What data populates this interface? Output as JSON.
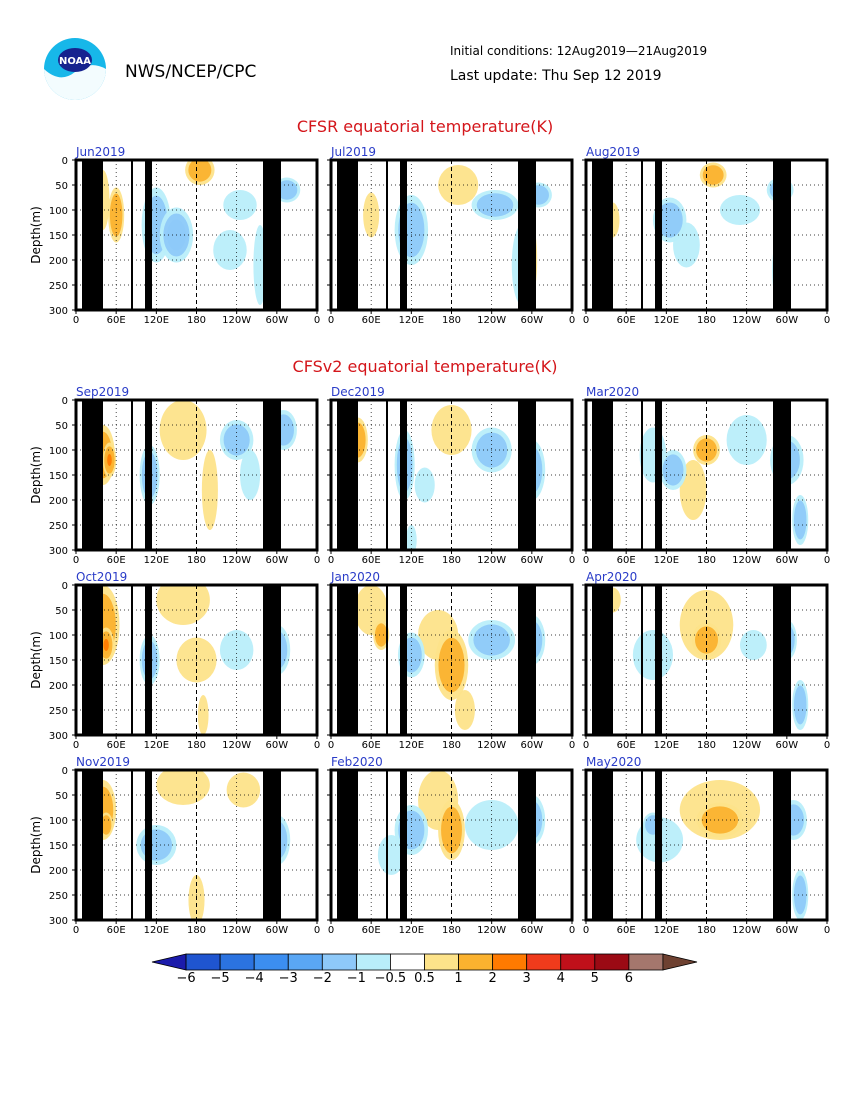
{
  "header": {
    "org": "NWS/NCEP/CPC",
    "logo_text": "NOAA",
    "initial_conditions": "Initial conditions: 12Aug2019—21Aug2019",
    "last_update": "Last update: Thu Sep 12 2019"
  },
  "sections": [
    {
      "title": "CFSR equatorial temperature(K)"
    },
    {
      "title": "CFSv2 equatorial temperature(K)"
    }
  ],
  "axes": {
    "ylabel": "Depth(m)",
    "xticks": [
      "0",
      "60E",
      "120E",
      "180",
      "120W",
      "60W",
      "0"
    ],
    "yticks": [
      "0",
      "50",
      "100",
      "150",
      "200",
      "250",
      "300"
    ]
  },
  "colors": {
    "land": "#000000",
    "month_label": "#2a3cc8",
    "section_title": "#d4161b"
  },
  "chart_data": {
    "type": "heatmap",
    "variable": "equatorial temperature anomaly (K)",
    "x": [
      "0",
      "60E",
      "120E",
      "180",
      "120W",
      "60W",
      "0"
    ],
    "y": [
      0,
      50,
      100,
      150,
      200,
      250,
      300
    ],
    "ylim": [
      300,
      0
    ],
    "grid": true,
    "panels": [
      {
        "label": "Jun2019",
        "section": 0,
        "row": 0,
        "col": 0,
        "features": [
          {
            "lon": 120,
            "depth": 130,
            "rx": 22,
            "ry": 75,
            "v": -1.5
          },
          {
            "lon": 150,
            "depth": 150,
            "rx": 25,
            "ry": 55,
            "v": -2
          },
          {
            "lon": 60,
            "depth": 110,
            "rx": 12,
            "ry": 55,
            "v": 1.5
          },
          {
            "lon": 40,
            "depth": 80,
            "rx": 10,
            "ry": 60,
            "v": 0.8
          },
          {
            "lon": 185,
            "depth": 20,
            "rx": 22,
            "ry": 30,
            "v": 1.5
          },
          {
            "lon": 245,
            "depth": 90,
            "rx": 25,
            "ry": 30,
            "v": -1
          },
          {
            "lon": 315,
            "depth": 60,
            "rx": 20,
            "ry": 25,
            "v": -1.5
          },
          {
            "lon": 275,
            "depth": 210,
            "rx": 10,
            "ry": 80,
            "v": -0.6
          },
          {
            "lon": 230,
            "depth": 180,
            "rx": 25,
            "ry": 40,
            "v": -0.6
          }
        ]
      },
      {
        "label": "Jul2019",
        "section": 0,
        "row": 0,
        "col": 1,
        "features": [
          {
            "lon": 120,
            "depth": 140,
            "rx": 25,
            "ry": 70,
            "v": -1.5
          },
          {
            "lon": 60,
            "depth": 110,
            "rx": 12,
            "ry": 45,
            "v": 1
          },
          {
            "lon": 190,
            "depth": 50,
            "rx": 30,
            "ry": 40,
            "v": 0.6
          },
          {
            "lon": 245,
            "depth": 90,
            "rx": 35,
            "ry": 30,
            "v": -1.5
          },
          {
            "lon": 310,
            "depth": 70,
            "rx": 20,
            "ry": 25,
            "v": -1.5
          },
          {
            "lon": 285,
            "depth": 210,
            "rx": 15,
            "ry": 80,
            "v": -0.6
          },
          {
            "lon": 300,
            "depth": 200,
            "rx": 8,
            "ry": 70,
            "v": 0.6
          }
        ]
      },
      {
        "label": "Aug2019",
        "section": 0,
        "row": 0,
        "col": 2,
        "features": [
          {
            "lon": 125,
            "depth": 120,
            "rx": 25,
            "ry": 45,
            "v": -1.5
          },
          {
            "lon": 40,
            "depth": 120,
            "rx": 10,
            "ry": 35,
            "v": 1
          },
          {
            "lon": 190,
            "depth": 30,
            "rx": 20,
            "ry": 25,
            "v": 1.5
          },
          {
            "lon": 230,
            "depth": 100,
            "rx": 30,
            "ry": 30,
            "v": -1
          },
          {
            "lon": 290,
            "depth": 60,
            "rx": 20,
            "ry": 25,
            "v": -1.5
          },
          {
            "lon": 290,
            "depth": 220,
            "rx": 12,
            "ry": 70,
            "v": -0.6
          },
          {
            "lon": 150,
            "depth": 170,
            "rx": 20,
            "ry": 45,
            "v": -0.6
          }
        ]
      },
      {
        "label": "Sep2019",
        "section": 1,
        "row": 0,
        "col": 0,
        "features": [
          {
            "lon": 40,
            "depth": 110,
            "rx": 18,
            "ry": 60,
            "v": 2
          },
          {
            "lon": 50,
            "depth": 120,
            "rx": 10,
            "ry": 35,
            "v": 2.5
          },
          {
            "lon": 110,
            "depth": 150,
            "rx": 15,
            "ry": 60,
            "v": -1.5
          },
          {
            "lon": 160,
            "depth": 60,
            "rx": 35,
            "ry": 60,
            "v": 0.6
          },
          {
            "lon": 200,
            "depth": 180,
            "rx": 12,
            "ry": 80,
            "v": 0.6
          },
          {
            "lon": 240,
            "depth": 80,
            "rx": 25,
            "ry": 40,
            "v": -1.5
          },
          {
            "lon": 310,
            "depth": 60,
            "rx": 20,
            "ry": 40,
            "v": -1.5
          },
          {
            "lon": 260,
            "depth": 150,
            "rx": 15,
            "ry": 50,
            "v": -0.6
          }
        ]
      },
      {
        "label": "Dec2019",
        "section": 1,
        "row": 0,
        "col": 1,
        "features": [
          {
            "lon": 40,
            "depth": 80,
            "rx": 15,
            "ry": 45,
            "v": 1.5
          },
          {
            "lon": 110,
            "depth": 130,
            "rx": 15,
            "ry": 70,
            "v": -1.5
          },
          {
            "lon": 140,
            "depth": 170,
            "rx": 15,
            "ry": 35,
            "v": -1
          },
          {
            "lon": 180,
            "depth": 60,
            "rx": 30,
            "ry": 50,
            "v": 0.6
          },
          {
            "lon": 240,
            "depth": 100,
            "rx": 30,
            "ry": 45,
            "v": -1.5
          },
          {
            "lon": 300,
            "depth": 140,
            "rx": 20,
            "ry": 60,
            "v": -1.5
          },
          {
            "lon": 120,
            "depth": 280,
            "rx": 8,
            "ry": 30,
            "v": -0.6
          }
        ]
      },
      {
        "label": "Mar2020",
        "section": 1,
        "row": 0,
        "col": 2,
        "features": [
          {
            "lon": 180,
            "depth": 100,
            "rx": 20,
            "ry": 30,
            "v": 1.5
          },
          {
            "lon": 160,
            "depth": 180,
            "rx": 20,
            "ry": 60,
            "v": 0.6
          },
          {
            "lon": 100,
            "depth": 110,
            "rx": 20,
            "ry": 55,
            "v": -1
          },
          {
            "lon": 130,
            "depth": 140,
            "rx": 20,
            "ry": 40,
            "v": -1.5
          },
          {
            "lon": 240,
            "depth": 80,
            "rx": 30,
            "ry": 50,
            "v": -0.6
          },
          {
            "lon": 300,
            "depth": 120,
            "rx": 25,
            "ry": 50,
            "v": -1.5
          },
          {
            "lon": 320,
            "depth": 240,
            "rx": 12,
            "ry": 50,
            "v": -1.5
          }
        ]
      },
      {
        "label": "Oct2019",
        "section": 1,
        "row": 1,
        "col": 0,
        "features": [
          {
            "lon": 40,
            "depth": 80,
            "rx": 25,
            "ry": 80,
            "v": 1.5
          },
          {
            "lon": 45,
            "depth": 120,
            "rx": 12,
            "ry": 35,
            "v": 2.5
          },
          {
            "lon": 110,
            "depth": 150,
            "rx": 15,
            "ry": 50,
            "v": -1.5
          },
          {
            "lon": 160,
            "depth": 30,
            "rx": 40,
            "ry": 50,
            "v": 0.6
          },
          {
            "lon": 180,
            "depth": 150,
            "rx": 30,
            "ry": 45,
            "v": 0.6
          },
          {
            "lon": 240,
            "depth": 130,
            "rx": 25,
            "ry": 40,
            "v": -0.6
          },
          {
            "lon": 300,
            "depth": 130,
            "rx": 20,
            "ry": 50,
            "v": -1.5
          },
          {
            "lon": 190,
            "depth": 260,
            "rx": 8,
            "ry": 40,
            "v": 0.6
          }
        ]
      },
      {
        "label": "Jan2020",
        "section": 1,
        "row": 1,
        "col": 1,
        "features": [
          {
            "lon": 60,
            "depth": 50,
            "rx": 25,
            "ry": 50,
            "v": 1
          },
          {
            "lon": 75,
            "depth": 100,
            "rx": 12,
            "ry": 30,
            "v": 2
          },
          {
            "lon": 120,
            "depth": 140,
            "rx": 20,
            "ry": 45,
            "v": -1.5
          },
          {
            "lon": 180,
            "depth": 160,
            "rx": 25,
            "ry": 70,
            "v": 1.5
          },
          {
            "lon": 160,
            "depth": 100,
            "rx": 30,
            "ry": 50,
            "v": 0.6
          },
          {
            "lon": 240,
            "depth": 110,
            "rx": 35,
            "ry": 40,
            "v": -1.5
          },
          {
            "lon": 300,
            "depth": 110,
            "rx": 20,
            "ry": 50,
            "v": -1.5
          },
          {
            "lon": 200,
            "depth": 250,
            "rx": 15,
            "ry": 40,
            "v": 0.6
          }
        ]
      },
      {
        "label": "Apr2020",
        "section": 1,
        "row": 1,
        "col": 2,
        "features": [
          {
            "lon": 180,
            "depth": 80,
            "rx": 40,
            "ry": 70,
            "v": 0.6
          },
          {
            "lon": 180,
            "depth": 110,
            "rx": 22,
            "ry": 35,
            "v": 1.5
          },
          {
            "lon": 100,
            "depth": 140,
            "rx": 30,
            "ry": 50,
            "v": -1
          },
          {
            "lon": 250,
            "depth": 120,
            "rx": 20,
            "ry": 30,
            "v": -0.6
          },
          {
            "lon": 300,
            "depth": 110,
            "rx": 15,
            "ry": 40,
            "v": -1.5
          },
          {
            "lon": 320,
            "depth": 240,
            "rx": 12,
            "ry": 50,
            "v": -1.5
          },
          {
            "lon": 40,
            "depth": 30,
            "rx": 12,
            "ry": 25,
            "v": 0.6
          }
        ]
      },
      {
        "label": "Nov2019",
        "section": 1,
        "row": 2,
        "col": 0,
        "features": [
          {
            "lon": 40,
            "depth": 80,
            "rx": 20,
            "ry": 60,
            "v": 1.5
          },
          {
            "lon": 45,
            "depth": 110,
            "rx": 10,
            "ry": 25,
            "v": 2
          },
          {
            "lon": 120,
            "depth": 150,
            "rx": 30,
            "ry": 40,
            "v": -1.5
          },
          {
            "lon": 160,
            "depth": 30,
            "rx": 40,
            "ry": 40,
            "v": 0.6
          },
          {
            "lon": 250,
            "depth": 40,
            "rx": 25,
            "ry": 35,
            "v": 0.6
          },
          {
            "lon": 300,
            "depth": 140,
            "rx": 20,
            "ry": 50,
            "v": -1.5
          },
          {
            "lon": 180,
            "depth": 260,
            "rx": 12,
            "ry": 50,
            "v": 0.6
          }
        ]
      },
      {
        "label": "Feb2020",
        "section": 1,
        "row": 2,
        "col": 1,
        "features": [
          {
            "lon": 120,
            "depth": 120,
            "rx": 25,
            "ry": 50,
            "v": -1.5
          },
          {
            "lon": 180,
            "depth": 120,
            "rx": 20,
            "ry": 60,
            "v": 1.5
          },
          {
            "lon": 160,
            "depth": 60,
            "rx": 30,
            "ry": 60,
            "v": 0.6
          },
          {
            "lon": 240,
            "depth": 110,
            "rx": 40,
            "ry": 50,
            "v": -0.6
          },
          {
            "lon": 300,
            "depth": 100,
            "rx": 20,
            "ry": 50,
            "v": -1.5
          },
          {
            "lon": 90,
            "depth": 170,
            "rx": 20,
            "ry": 40,
            "v": -0.6
          }
        ]
      },
      {
        "label": "May2020",
        "section": 1,
        "row": 2,
        "col": 2,
        "features": [
          {
            "lon": 200,
            "depth": 80,
            "rx": 60,
            "ry": 60,
            "v": 0.6
          },
          {
            "lon": 200,
            "depth": 100,
            "rx": 35,
            "ry": 35,
            "v": 1.5
          },
          {
            "lon": 110,
            "depth": 140,
            "rx": 35,
            "ry": 45,
            "v": -0.6
          },
          {
            "lon": 100,
            "depth": 110,
            "rx": 15,
            "ry": 25,
            "v": -1.5
          },
          {
            "lon": 310,
            "depth": 100,
            "rx": 20,
            "ry": 40,
            "v": -1.5
          },
          {
            "lon": 320,
            "depth": 250,
            "rx": 12,
            "ry": 50,
            "v": -1.5
          }
        ]
      }
    ],
    "colorbar": {
      "levels": [
        "−6",
        "−5",
        "−4",
        "−3",
        "−2",
        "−1",
        "−0.5",
        "0.5",
        "1",
        "2",
        "3",
        "4",
        "5",
        "6"
      ],
      "colors": [
        "#1b1bab",
        "#1f55d0",
        "#2b73e0",
        "#3c8ef0",
        "#5aa7f5",
        "#8ec9f9",
        "#b9eefa",
        "#ffffff",
        "#fde38a",
        "#fbb22f",
        "#ff7a00",
        "#f03b1c",
        "#c0101a",
        "#9b0a14",
        "#a5776d",
        "#6e4131"
      ]
    }
  }
}
